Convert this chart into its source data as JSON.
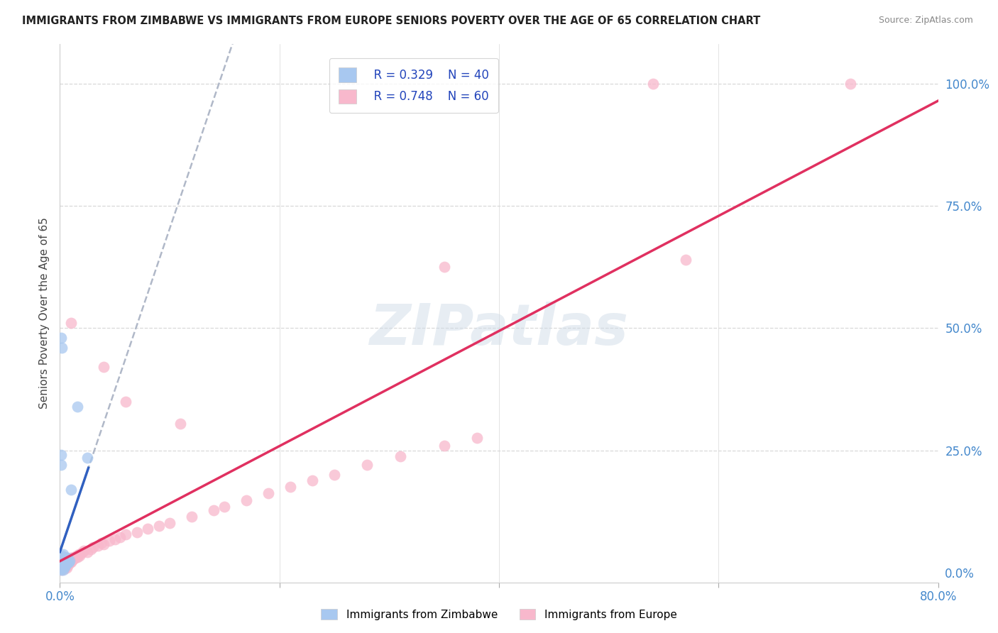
{
  "title": "IMMIGRANTS FROM ZIMBABWE VS IMMIGRANTS FROM EUROPE SENIORS POVERTY OVER THE AGE OF 65 CORRELATION CHART",
  "source": "Source: ZipAtlas.com",
  "ylabel": "Seniors Poverty Over the Age of 65",
  "xlim": [
    0.0,
    0.8
  ],
  "ylim": [
    -0.02,
    1.08
  ],
  "watermark": "ZIPatlas",
  "legend_r1": "R = 0.329",
  "legend_n1": "N = 40",
  "legend_r2": "R = 0.748",
  "legend_n2": "N = 60",
  "zimbabwe_color": "#a8c8f0",
  "europe_color": "#f8b8cc",
  "zimbabwe_line_color": "#3060c0",
  "europe_line_color": "#e03060",
  "dashed_line_color": "#b0b8c8",
  "grid_color": "#d8d8d8",
  "background_color": "#ffffff",
  "zimbabwe_points": [
    [
      0.001,
      0.005
    ],
    [
      0.001,
      0.01
    ],
    [
      0.001,
      0.008
    ],
    [
      0.001,
      0.015
    ],
    [
      0.001,
      0.02
    ],
    [
      0.001,
      0.025
    ],
    [
      0.001,
      0.03
    ],
    [
      0.002,
      0.008
    ],
    [
      0.002,
      0.012
    ],
    [
      0.002,
      0.018
    ],
    [
      0.002,
      0.022
    ],
    [
      0.002,
      0.028
    ],
    [
      0.002,
      0.035
    ],
    [
      0.003,
      0.01
    ],
    [
      0.003,
      0.015
    ],
    [
      0.003,
      0.02
    ],
    [
      0.003,
      0.025
    ],
    [
      0.003,
      0.03
    ],
    [
      0.003,
      0.038
    ],
    [
      0.004,
      0.012
    ],
    [
      0.004,
      0.018
    ],
    [
      0.004,
      0.025
    ],
    [
      0.004,
      0.032
    ],
    [
      0.005,
      0.015
    ],
    [
      0.005,
      0.02
    ],
    [
      0.005,
      0.028
    ],
    [
      0.006,
      0.018
    ],
    [
      0.006,
      0.025
    ],
    [
      0.007,
      0.02
    ],
    [
      0.007,
      0.03
    ],
    [
      0.008,
      0.022
    ],
    [
      0.009,
      0.025
    ],
    [
      0.001,
      0.22
    ],
    [
      0.001,
      0.48
    ],
    [
      0.002,
      0.46
    ],
    [
      0.01,
      0.17
    ],
    [
      0.016,
      0.34
    ],
    [
      0.025,
      0.235
    ],
    [
      0.001,
      0.24
    ],
    [
      0.003,
      0.005
    ]
  ],
  "europe_points": [
    [
      0.002,
      0.005
    ],
    [
      0.003,
      0.01
    ],
    [
      0.004,
      0.008
    ],
    [
      0.004,
      0.015
    ],
    [
      0.005,
      0.012
    ],
    [
      0.005,
      0.018
    ],
    [
      0.006,
      0.01
    ],
    [
      0.006,
      0.02
    ],
    [
      0.007,
      0.015
    ],
    [
      0.007,
      0.022
    ],
    [
      0.008,
      0.018
    ],
    [
      0.008,
      0.025
    ],
    [
      0.009,
      0.02
    ],
    [
      0.009,
      0.028
    ],
    [
      0.01,
      0.022
    ],
    [
      0.01,
      0.03
    ],
    [
      0.011,
      0.025
    ],
    [
      0.012,
      0.028
    ],
    [
      0.013,
      0.032
    ],
    [
      0.014,
      0.03
    ],
    [
      0.015,
      0.035
    ],
    [
      0.016,
      0.032
    ],
    [
      0.017,
      0.038
    ],
    [
      0.018,
      0.035
    ],
    [
      0.02,
      0.04
    ],
    [
      0.022,
      0.045
    ],
    [
      0.025,
      0.042
    ],
    [
      0.028,
      0.048
    ],
    [
      0.03,
      0.052
    ],
    [
      0.035,
      0.055
    ],
    [
      0.038,
      0.06
    ],
    [
      0.04,
      0.058
    ],
    [
      0.045,
      0.065
    ],
    [
      0.05,
      0.068
    ],
    [
      0.055,
      0.072
    ],
    [
      0.06,
      0.078
    ],
    [
      0.07,
      0.082
    ],
    [
      0.08,
      0.09
    ],
    [
      0.09,
      0.095
    ],
    [
      0.1,
      0.102
    ],
    [
      0.12,
      0.115
    ],
    [
      0.14,
      0.128
    ],
    [
      0.15,
      0.135
    ],
    [
      0.17,
      0.148
    ],
    [
      0.19,
      0.162
    ],
    [
      0.21,
      0.175
    ],
    [
      0.23,
      0.188
    ],
    [
      0.25,
      0.2
    ],
    [
      0.28,
      0.22
    ],
    [
      0.31,
      0.238
    ],
    [
      0.35,
      0.26
    ],
    [
      0.38,
      0.275
    ],
    [
      0.01,
      0.51
    ],
    [
      0.04,
      0.42
    ],
    [
      0.06,
      0.35
    ],
    [
      0.11,
      0.305
    ],
    [
      0.35,
      0.625
    ],
    [
      0.54,
      1.0
    ],
    [
      0.72,
      1.0
    ],
    [
      0.57,
      0.64
    ]
  ]
}
